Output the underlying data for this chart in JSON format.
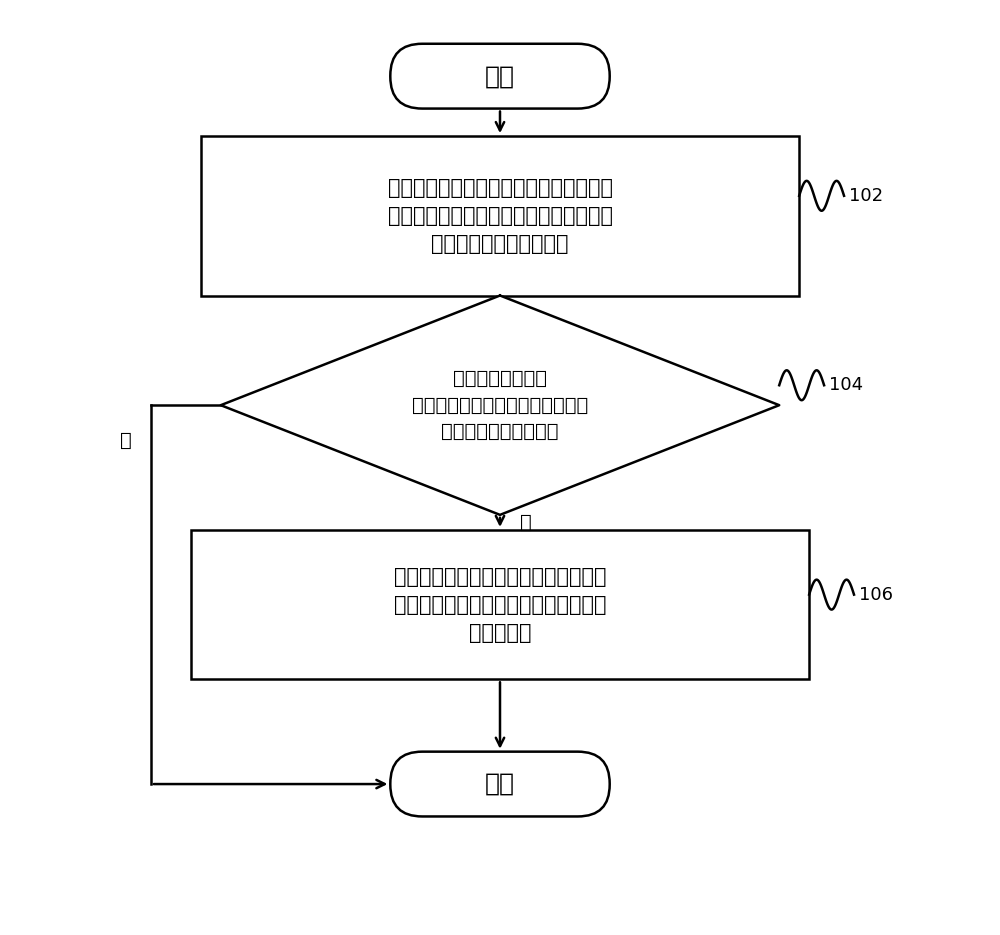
{
  "bg_color": "#ffffff",
  "line_color": "#000000",
  "fill_color": "#ffffff",
  "text_color": "#000000",
  "font_size_main": 16,
  "font_size_label": 14,
  "font_size_small": 13,
  "start_text": "开始",
  "end_text": "结束",
  "box1_text": "构造柔性直流输电线路的极模反向电压故\n障暂态行波和极模反向电压故障暂态行波\n的等效极模反向电压行波",
  "diamond_text": "根据等效极模反向\n电压行波的非零值的个数初步判定\n是否可能发生雷击干扰",
  "box2_text": "对极模反向电压故障暂态行波的波尾进\n行拟合，并根据拟合结果，判断是否发\n生雷击干扰",
  "label_102": "102",
  "label_104": "104",
  "label_106": "106",
  "yes_text": "是",
  "no_text": "否",
  "arrow_color": "#000000",
  "wave_color": "#000000"
}
